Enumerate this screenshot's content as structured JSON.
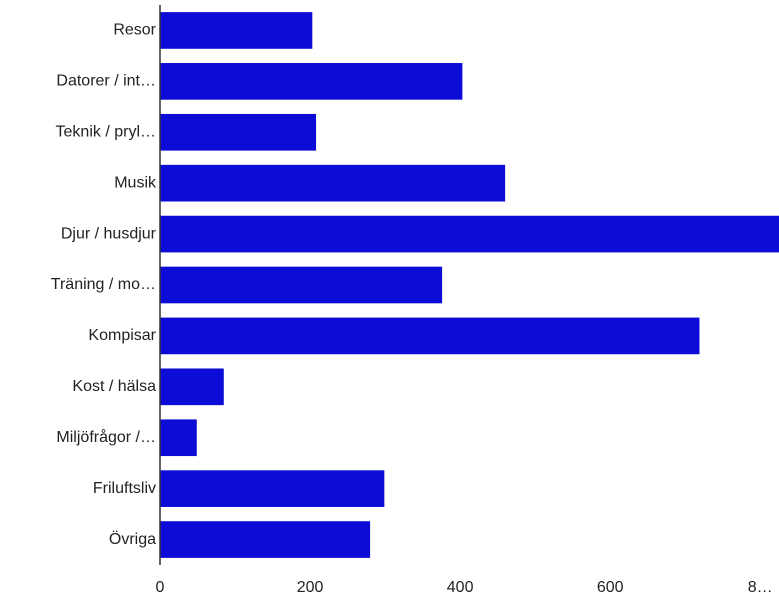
{
  "chart_data": {
    "type": "bar",
    "orientation": "horizontal",
    "categories": [
      "Resor",
      "Datorer / int…",
      "Teknik / pryl…",
      "Musik",
      "Djur / husdjur",
      "Träning / mo…",
      "Kompisar",
      "Kost / hälsa",
      "Miljöfrågor /…",
      "Friluftsliv",
      "Övriga"
    ],
    "values": [
      203,
      403,
      208,
      460,
      825,
      376,
      719,
      85,
      49,
      299,
      280
    ],
    "color": "#0c0cd6",
    "xlim": [
      0,
      825
    ],
    "xticks": [
      0,
      200,
      400,
      600,
      {
        "value": 800,
        "label": "8…"
      }
    ],
    "grid": false
  }
}
